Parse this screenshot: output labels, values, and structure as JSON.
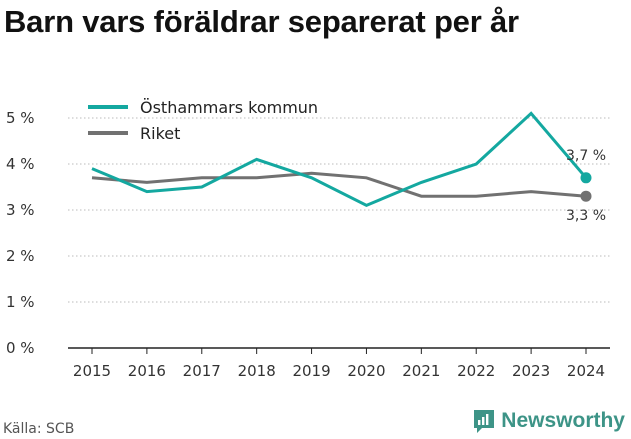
{
  "title": "Barn vars föräldrar separerat per år",
  "source": "Källa: SCB",
  "brand": "Newsworthy",
  "colors": {
    "series_primary": "#14a8a0",
    "series_secondary": "#717171",
    "grid": "#bbbbbb",
    "axis": "#222222",
    "brand": "#3d9487"
  },
  "chart_data": {
    "type": "line",
    "x": [
      2015,
      2016,
      2017,
      2018,
      2019,
      2020,
      2021,
      2022,
      2023,
      2024
    ],
    "series": [
      {
        "name": "Östhammars kommun",
        "values": [
          3.9,
          3.4,
          3.5,
          4.1,
          3.7,
          3.1,
          3.6,
          4.0,
          5.1,
          3.7
        ],
        "end_label": "3,7 %"
      },
      {
        "name": "Riket",
        "values": [
          3.7,
          3.6,
          3.7,
          3.7,
          3.8,
          3.7,
          3.3,
          3.3,
          3.4,
          3.3
        ],
        "end_label": "3,3 %"
      }
    ],
    "yticks": [
      0,
      1,
      2,
      3,
      4,
      5
    ],
    "ytick_labels": [
      "0 %",
      "1 %",
      "2 %",
      "3 %",
      "4 %",
      "5 %"
    ],
    "ylim": [
      0,
      5
    ],
    "grid": "horizontal",
    "legend": "top-left"
  }
}
